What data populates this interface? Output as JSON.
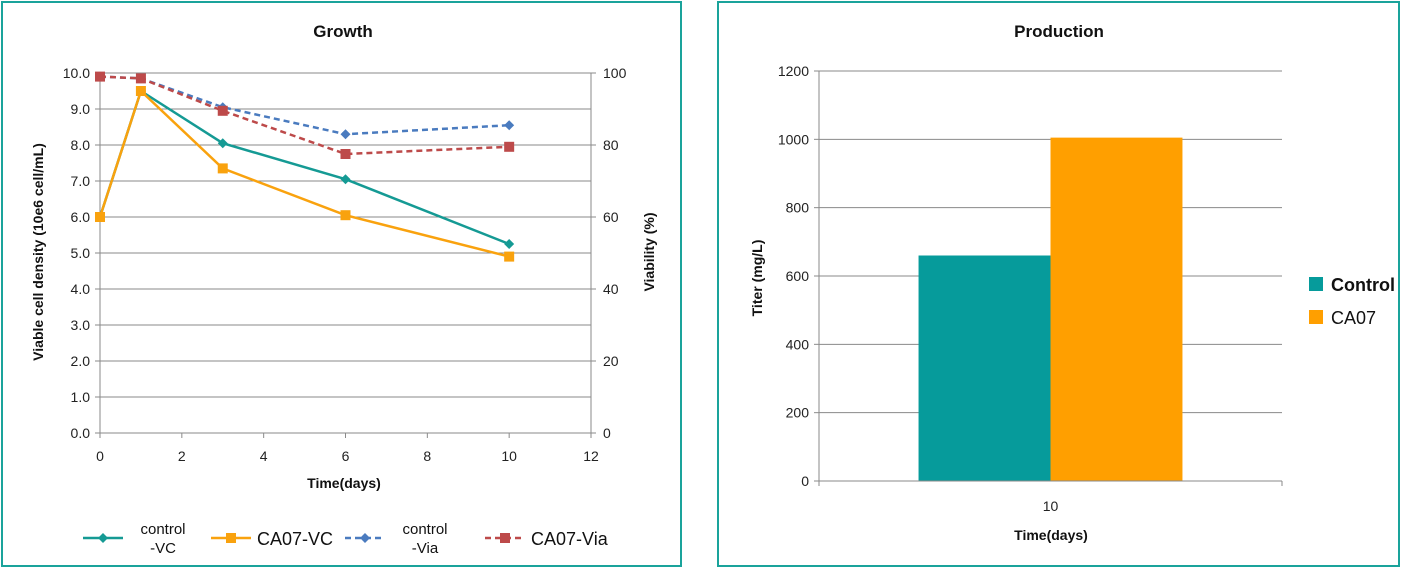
{
  "colors": {
    "control_vc": "#159a94",
    "ca07_vc": "#f9a20e",
    "control_via": "#4a7bbf",
    "ca07_via": "#bd4a4a",
    "control_bar": "#069b9b",
    "ca07_bar": "#ff9f00",
    "panel_border": "#1aa39b",
    "grid": "#8a8a8a"
  },
  "chart_data": [
    {
      "type": "line",
      "title": "Growth",
      "xlabel": "Time(days)",
      "ylabel": "Viable cell density (10e6 cell/mL)",
      "y2label": "Viability (%)",
      "xlim": [
        0,
        12
      ],
      "ylim": [
        0,
        10
      ],
      "y2lim": [
        0,
        100
      ],
      "x_ticks": [
        "0",
        "2",
        "4",
        "6",
        "8",
        "10",
        "12"
      ],
      "y_ticks": [
        "0.0",
        "1.0",
        "2.0",
        "3.0",
        "4.0",
        "5.0",
        "6.0",
        "7.0",
        "8.0",
        "9.0",
        "10.0"
      ],
      "y2_ticks": [
        "0",
        "20",
        "40",
        "60",
        "80",
        "100"
      ],
      "grid": true,
      "legend_position": "bottom",
      "series": [
        {
          "name": "control-VC",
          "legend_lines": [
            "control",
            "-VC"
          ],
          "axis": "left",
          "marker": "diamond",
          "dash": "solid",
          "color_key": "control_vc",
          "x": [
            0,
            1,
            3,
            6,
            10
          ],
          "y": [
            6.0,
            9.5,
            8.05,
            7.05,
            5.25
          ]
        },
        {
          "name": "CA07-VC",
          "legend_lines": [
            "CA07-VC"
          ],
          "axis": "left",
          "marker": "square",
          "dash": "solid",
          "color_key": "ca07_vc",
          "x": [
            0,
            1,
            3,
            6,
            10
          ],
          "y": [
            6.0,
            9.5,
            7.35,
            6.05,
            4.9
          ]
        },
        {
          "name": "control-Via",
          "legend_lines": [
            "control",
            "-Via"
          ],
          "axis": "right",
          "marker": "diamond",
          "dash": "dashed",
          "color_key": "control_via",
          "x": [
            0,
            1,
            3,
            6,
            10
          ],
          "y": [
            99,
            98.5,
            90.5,
            83,
            85.5
          ]
        },
        {
          "name": "CA07-Via",
          "legend_lines": [
            "CA07-Via"
          ],
          "axis": "right",
          "marker": "square",
          "dash": "dashed",
          "color_key": "ca07_via",
          "x": [
            0,
            1,
            3,
            6,
            10
          ],
          "y": [
            99,
            98.5,
            89.5,
            77.5,
            79.5
          ]
        }
      ]
    },
    {
      "type": "bar",
      "title": "Production",
      "xlabel": "Time(days)",
      "ylabel": "Titer (mg/L)",
      "categories": [
        "10"
      ],
      "ylim": [
        0,
        1200
      ],
      "y_ticks": [
        "0",
        "200",
        "400",
        "600",
        "800",
        "1000",
        "1200"
      ],
      "grid": true,
      "legend_position": "right",
      "series": [
        {
          "name": "Control",
          "color_key": "control_bar",
          "values": [
            660
          ]
        },
        {
          "name": "CA07",
          "color_key": "ca07_bar",
          "values": [
            1005
          ]
        }
      ]
    }
  ]
}
